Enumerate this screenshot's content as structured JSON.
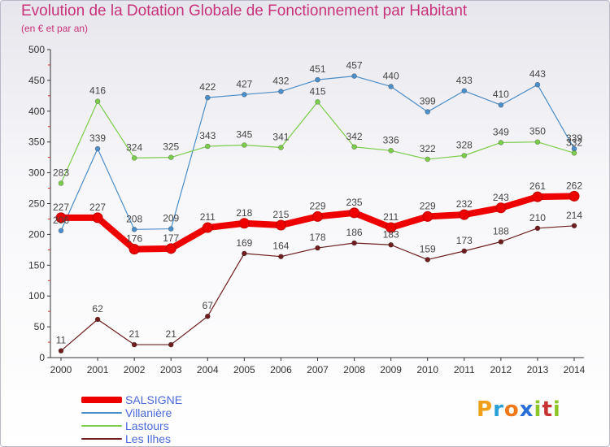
{
  "chart_data": {
    "type": "line",
    "title": "Evolution de la Dotation Globale de Fonctionnement par Habitant",
    "subtitle": "(en € et par an)",
    "xlabel": "",
    "ylabel": "",
    "x": [
      "2000",
      "2001",
      "2002",
      "2003",
      "2004",
      "2005",
      "2006",
      "2007",
      "2008",
      "2009",
      "2010",
      "2011",
      "2012",
      "2013",
      "2014"
    ],
    "ylim": [
      0,
      500
    ],
    "yticks": [
      0,
      50,
      100,
      150,
      200,
      250,
      300,
      350,
      400,
      450,
      500
    ],
    "grid": false,
    "legend_position": "bottom-left",
    "series": [
      {
        "name": "Villanière",
        "color": "#4c8ec8",
        "values": [
          206,
          339,
          208,
          209,
          422,
          427,
          432,
          451,
          457,
          440,
          399,
          433,
          410,
          443,
          339
        ]
      },
      {
        "name": "Lastours",
        "color": "#7ccc4c",
        "values": [
          283,
          416,
          324,
          325,
          343,
          345,
          341,
          415,
          342,
          336,
          322,
          328,
          349,
          350,
          332
        ]
      },
      {
        "name": "Les Ilhes",
        "color": "#6e1e1e",
        "values": [
          11,
          62,
          21,
          21,
          67,
          169,
          164,
          178,
          186,
          183,
          159,
          173,
          188,
          210,
          214
        ]
      },
      {
        "name": "SALSIGNE",
        "color": "#ee0000",
        "values": [
          227,
          227,
          176,
          177,
          211,
          218,
          215,
          229,
          235,
          211,
          229,
          232,
          243,
          261,
          262
        ]
      }
    ],
    "legend_order": [
      "SALSIGNE",
      "Villanière",
      "Lastours",
      "Les Ilhes"
    ]
  },
  "logo": {
    "letters": [
      "P",
      "r",
      "o",
      "x",
      "i",
      "t",
      "i"
    ]
  }
}
